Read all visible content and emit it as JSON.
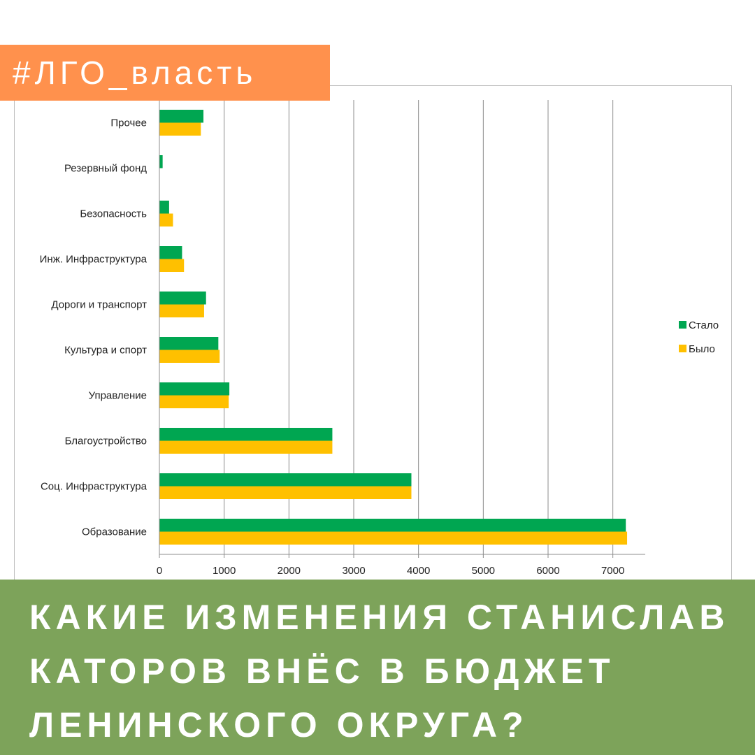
{
  "header": {
    "tag": "#ЛГО_власть"
  },
  "banner": {
    "lines": [
      "КАКИЕ ИЗМЕНЕНИЯ СТАНИСЛАВ",
      "КАТОРОВ ВНЁС В БЮДЖЕТ",
      "ЛЕНИНСКОГО ОКРУГА?"
    ]
  },
  "colors": {
    "tag_bg": "#ff914d",
    "banner_bg": "#7da35a",
    "series_stalo": "#00a651",
    "series_bylo": "#ffc000"
  },
  "chart_data": {
    "type": "bar",
    "orientation": "horizontal",
    "categories": [
      "Прочее",
      "Резервный фонд",
      "Безопасность",
      "Инж. Инфраструктура",
      "Дороги и транспорт",
      "Культура и спорт",
      "Управление",
      "Благоустройство",
      "Соц. Инфраструктура",
      "Образование"
    ],
    "series": [
      {
        "name": "Стало",
        "color": "#00a651",
        "values": [
          680,
          50,
          150,
          350,
          720,
          910,
          1080,
          2670,
          3890,
          7200
        ]
      },
      {
        "name": "Было",
        "color": "#ffc000",
        "values": [
          640,
          0,
          210,
          380,
          690,
          930,
          1070,
          2670,
          3890,
          7220
        ]
      }
    ],
    "xlim": [
      0,
      7500
    ],
    "x_ticks": [
      0,
      1000,
      2000,
      3000,
      4000,
      5000,
      6000,
      7000
    ],
    "grid": "vertical",
    "legend_position": "right"
  }
}
